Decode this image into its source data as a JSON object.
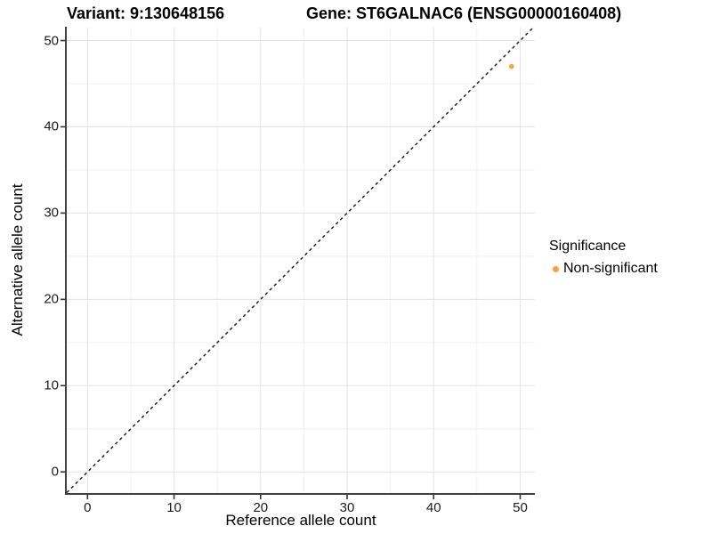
{
  "chart_data": {
    "type": "scatter",
    "title_left": "Variant: 9:130648156",
    "title_right": "Gene: ST6GALNAC6 (ENSG00000160408)",
    "xlabel": "Reference allele count",
    "ylabel": "Alternative allele count",
    "xlim": [
      -2.4,
      51.7
    ],
    "ylim": [
      -2.45,
      51.5
    ],
    "xticks": [
      0,
      10,
      20,
      30,
      40,
      50
    ],
    "yticks": [
      0,
      10,
      20,
      30,
      40,
      50
    ],
    "grid": "major every 10 with minor every 5, light gray, white background",
    "identity_line": {
      "style": "dashed",
      "slope": 1,
      "intercept": 0
    },
    "series": [
      {
        "name": "Non-significant",
        "color": "#F9A03F",
        "points": [
          {
            "x": 49,
            "y": 47
          }
        ]
      }
    ],
    "legend": {
      "title": "Significance",
      "position": "right",
      "entries": [
        {
          "label": "Non-significant",
          "color": "#F9A03F",
          "marker": "circle"
        }
      ]
    }
  },
  "colors": {
    "background": "#FFFFFF",
    "axis_line": "#404040",
    "tick_mark": "#333333",
    "grid_major": "#E3E3E3",
    "grid_minor": "#F0F0F0",
    "identity_line": "#141414",
    "point": "#F9A03F",
    "text": "#000000"
  }
}
